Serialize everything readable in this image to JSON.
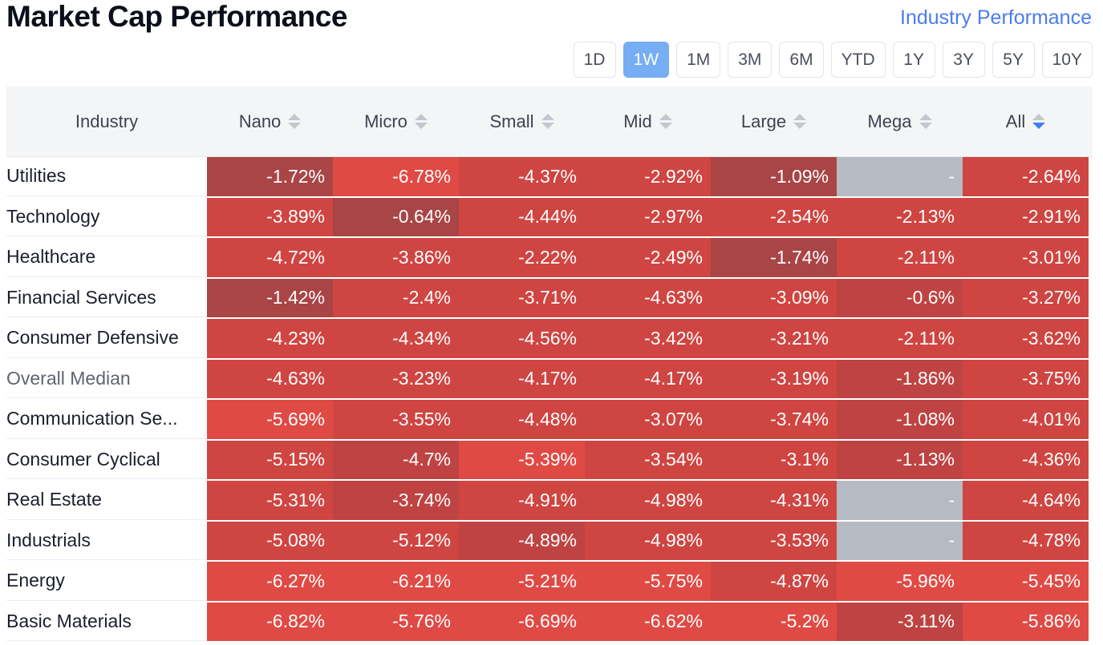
{
  "page": {
    "title": "Market Cap Performance",
    "top_link": "Industry Performance"
  },
  "periods": [
    "1D",
    "1W",
    "1M",
    "3M",
    "6M",
    "YTD",
    "1Y",
    "3Y",
    "5Y",
    "10Y"
  ],
  "active_period": "1W",
  "table": {
    "columns": [
      "Industry",
      "Nano",
      "Micro",
      "Small",
      "Mid",
      "Large",
      "Mega",
      "All"
    ],
    "sorted_column": "All",
    "sort_direction": "descending",
    "rows": [
      {
        "industry": "Utilities",
        "values": [
          "-1.72%",
          "-6.78%",
          "-4.37%",
          "-2.92%",
          "-1.09%",
          "-",
          "-2.64%"
        ],
        "shades": [
          3,
          0,
          1,
          1,
          3,
          "na",
          1
        ]
      },
      {
        "industry": "Technology",
        "values": [
          "-3.89%",
          "-0.64%",
          "-4.44%",
          "-2.97%",
          "-2.54%",
          "-2.13%",
          "-2.91%"
        ],
        "shades": [
          1,
          3,
          1,
          1,
          1,
          1,
          1
        ]
      },
      {
        "industry": "Healthcare",
        "values": [
          "-4.72%",
          "-3.86%",
          "-2.22%",
          "-2.49%",
          "-1.74%",
          "-2.11%",
          "-3.01%"
        ],
        "shades": [
          1,
          1,
          1,
          1,
          3,
          1,
          1
        ]
      },
      {
        "industry": "Financial Services",
        "values": [
          "-1.42%",
          "-2.4%",
          "-3.71%",
          "-4.63%",
          "-3.09%",
          "-0.6%",
          "-3.27%"
        ],
        "shades": [
          3,
          1,
          1,
          1,
          1,
          2,
          1
        ]
      },
      {
        "industry": "Consumer Defensive",
        "values": [
          "-4.23%",
          "-4.34%",
          "-4.56%",
          "-3.42%",
          "-3.21%",
          "-2.11%",
          "-3.62%"
        ],
        "shades": [
          1,
          1,
          1,
          1,
          1,
          1,
          1
        ]
      },
      {
        "industry": "Overall Median",
        "values": [
          "-4.63%",
          "-3.23%",
          "-4.17%",
          "-4.17%",
          "-3.19%",
          "-1.86%",
          "-3.75%"
        ],
        "shades": [
          1,
          1,
          1,
          1,
          1,
          2,
          1
        ],
        "muted": true
      },
      {
        "industry": "Communication Se...",
        "values": [
          "-5.69%",
          "-3.55%",
          "-4.48%",
          "-3.07%",
          "-3.74%",
          "-1.08%",
          "-4.01%"
        ],
        "shades": [
          0,
          1,
          1,
          1,
          1,
          2,
          1
        ]
      },
      {
        "industry": "Consumer Cyclical",
        "values": [
          "-5.15%",
          "-4.7%",
          "-5.39%",
          "-3.54%",
          "-3.1%",
          "-1.13%",
          "-4.36%"
        ],
        "shades": [
          1,
          2,
          0,
          1,
          1,
          2,
          1
        ]
      },
      {
        "industry": "Real Estate",
        "values": [
          "-5.31%",
          "-3.74%",
          "-4.91%",
          "-4.98%",
          "-4.31%",
          "-",
          "-4.64%"
        ],
        "shades": [
          1,
          2,
          1,
          1,
          1,
          "na",
          1
        ]
      },
      {
        "industry": "Industrials",
        "values": [
          "-5.08%",
          "-5.12%",
          "-4.89%",
          "-4.98%",
          "-3.53%",
          "-",
          "-4.78%"
        ],
        "shades": [
          1,
          1,
          2,
          1,
          1,
          "na",
          1
        ]
      },
      {
        "industry": "Energy",
        "values": [
          "-6.27%",
          "-6.21%",
          "-5.21%",
          "-5.75%",
          "-4.87%",
          "-5.96%",
          "-5.45%"
        ],
        "shades": [
          0,
          0,
          0,
          0,
          1,
          0,
          0
        ]
      },
      {
        "industry": "Basic Materials",
        "values": [
          "-6.82%",
          "-5.76%",
          "-6.69%",
          "-6.62%",
          "-5.2%",
          "-3.11%",
          "-5.86%"
        ],
        "shades": [
          0,
          0,
          0,
          0,
          0,
          2,
          0
        ]
      }
    ]
  },
  "colors": {
    "accent": "#77adf3",
    "link": "#4c7cf0",
    "shade_0": "#e04a45",
    "shade_1": "#cf4541",
    "shade_2": "#be4342",
    "shade_3": "#a94545",
    "na": "#b6bac2"
  }
}
